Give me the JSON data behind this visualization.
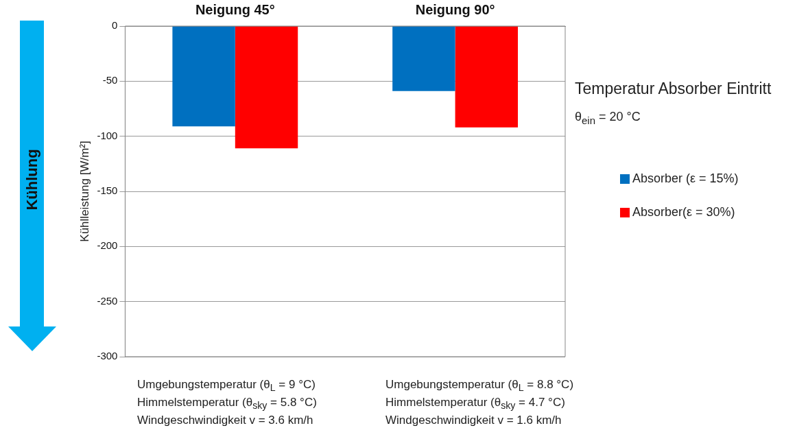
{
  "chart_data": {
    "type": "bar",
    "categories": [
      "Neigung 45°",
      "Neigung 90°"
    ],
    "series": [
      {
        "name": "Absorber (ε = 15%)",
        "color": "#0070c0",
        "values": [
          -91,
          -59
        ]
      },
      {
        "name": "Absorber(ε = 30%)",
        "color": "#ff0000",
        "values": [
          -111,
          -92
        ]
      }
    ],
    "ylabel": "Kühlleistung [W/m²]",
    "ylim": [
      -300,
      0
    ],
    "yticks": [
      -300,
      -250,
      -200,
      -150,
      -100,
      -50,
      0
    ],
    "grid": "y",
    "legend": "right",
    "annotations": [
      "Kühlung",
      "Temperatur Absorber Eintritt",
      "θ$_{ein}$ = 20 °C",
      "Umgebungstemperatur (θ$_{L}$ = 9 °C)",
      "Himmelstemperatur (θ$_{sky}$ = 5.8 °C)",
      "Windgeschwindigkeit v = 3.6 km/h",
      "Umgebungstemperatur (θ$_{L}$ = 8.8 °C)",
      "Himmelstemperatur (θ$_{sky}$ = 4.7 °C)",
      "Windgeschwindigkeit v = 1.6 km/h"
    ]
  }
}
